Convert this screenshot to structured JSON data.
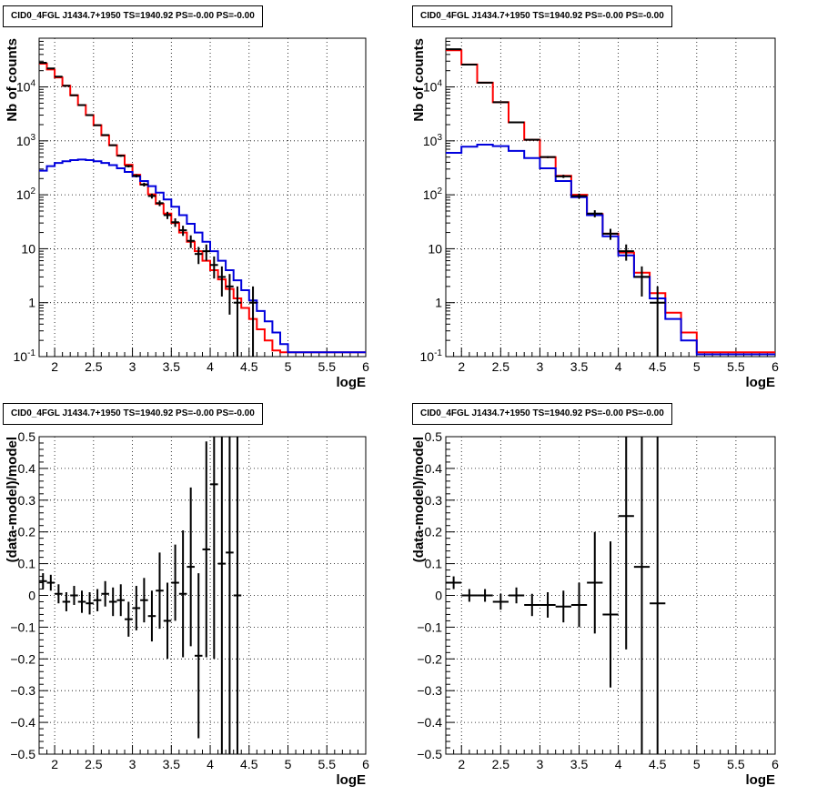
{
  "colors": {
    "data": "#000000",
    "model_total": "#ff0000",
    "model_component": "#0000dd"
  },
  "panels": [
    {
      "title": "CID0_4FGL J1434.7+1950 TS=1940.92 PS=-0.00 PS=-0.00",
      "chart_data": {
        "type": "line",
        "xlabel": "logE",
        "ylabel": "Nb of counts",
        "xlim": [
          1.8,
          6.0
        ],
        "ylim": [
          0.1,
          80000
        ],
        "yscale": "log",
        "grid": true,
        "xticks": [
          "2",
          "2.5",
          "3",
          "3.5",
          "4",
          "4.5",
          "5",
          "5.5",
          "6"
        ],
        "yticks": [
          "10^-1",
          "1",
          "10",
          "10^2",
          "10^3",
          "10^4"
        ],
        "bin_edges": [
          1.8,
          1.9,
          2.0,
          2.1,
          2.2,
          2.3,
          2.4,
          2.5,
          2.6,
          2.7,
          2.8,
          2.9,
          3.0,
          3.1,
          3.2,
          3.3,
          3.4,
          3.5,
          3.6,
          3.7,
          3.8,
          3.9,
          4.0,
          4.1,
          4.2,
          4.3,
          4.4,
          4.5,
          4.6,
          4.7,
          4.8,
          4.9,
          5.0,
          5.1,
          5.2,
          5.3,
          5.4,
          5.5,
          5.6,
          5.7,
          5.8,
          5.9,
          6.0
        ],
        "series": [
          {
            "role": "model_total",
            "values": [
              27000,
              21000,
              15000,
              10500,
              7000,
              4600,
              3000,
              1950,
              1270,
              830,
              540,
              360,
              235,
              155,
              102,
              68,
              45,
              30,
              20,
              13.5,
              9,
              6,
              4,
              2.7,
              1.8,
              1.2,
              0.8,
              0.5,
              0.32,
              0.2,
              0.13,
              0.12,
              0.12,
              0.12,
              0.12,
              0.12,
              0.12,
              0.12,
              0.12,
              0.12,
              0.12,
              0.12
            ]
          },
          {
            "role": "model_component",
            "values": [
              280,
              340,
              390,
              420,
              440,
              450,
              440,
              420,
              390,
              355,
              310,
              265,
              220,
              180,
              145,
              110,
              82,
              60,
              42,
              29,
              20,
              13.5,
              9,
              6,
              4,
              2.6,
              1.7,
              1.1,
              0.7,
              0.45,
              0.28,
              0.17,
              0.12,
              0.12,
              0.12,
              0.12,
              0.12,
              0.12,
              0.12,
              0.12,
              0.12,
              0.12
            ]
          },
          {
            "role": "data",
            "x": [
              1.85,
              1.95,
              2.05,
              2.15,
              2.25,
              2.35,
              2.45,
              2.55,
              2.65,
              2.75,
              2.85,
              2.95,
              3.05,
              3.15,
              3.25,
              3.35,
              3.45,
              3.55,
              3.65,
              3.75,
              3.85,
              3.95,
              4.05,
              4.15,
              4.25,
              4.35,
              4.55
            ],
            "y": [
              28000,
              22000,
              15500,
              10500,
              7000,
              4600,
              3000,
              1950,
              1280,
              830,
              530,
              340,
              225,
              155,
              95,
              70,
              42,
              31,
              22,
              14,
              8,
              9,
              5,
              3,
              2,
              1,
              1
            ],
            "yerr": [
              170,
              150,
              125,
              105,
              85,
              70,
              55,
              45,
              36,
              29,
              23,
              18,
              15,
              12.5,
              10,
              8.4,
              6.5,
              5.6,
              4.7,
              3.7,
              2.8,
              3,
              2.2,
              1.7,
              1.4,
              1,
              1
            ]
          }
        ]
      }
    },
    {
      "title": "CID0_4FGL J1434.7+1950 TS=1940.92 PS=-0.00 PS=-0.00",
      "chart_data": {
        "type": "line",
        "xlabel": "logE",
        "ylabel": "Nb of counts",
        "xlim": [
          1.8,
          6.0
        ],
        "ylim": [
          0.1,
          80000
        ],
        "yscale": "log",
        "grid": true,
        "xticks": [
          "2",
          "2.5",
          "3",
          "3.5",
          "4",
          "4.5",
          "5",
          "5.5",
          "6"
        ],
        "yticks": [
          "10^-1",
          "1",
          "10",
          "10^2",
          "10^3",
          "10^4"
        ],
        "bin_edges": [
          1.8,
          2.0,
          2.2,
          2.4,
          2.6,
          2.8,
          3.0,
          3.2,
          3.4,
          3.6,
          3.8,
          4.0,
          4.2,
          4.4,
          4.6,
          4.8,
          5.0,
          5.2,
          5.4,
          5.6,
          5.8,
          6.0
        ],
        "series": [
          {
            "role": "model_total",
            "values": [
              48000,
              26000,
              12000,
              5200,
              2200,
              1050,
              500,
              225,
              100,
              44,
              19,
              8.5,
              3.6,
              1.5,
              0.65,
              0.28,
              0.12,
              0.12,
              0.12,
              0.12,
              0.12
            ]
          },
          {
            "role": "model_component",
            "values": [
              600,
              780,
              850,
              800,
              650,
              480,
              310,
              180,
              90,
              42,
              17,
              7.5,
              3,
              1.2,
              0.5,
              0.2,
              0.11,
              0.11,
              0.11,
              0.11,
              0.11
            ]
          },
          {
            "role": "data",
            "x": [
              1.9,
              2.1,
              2.3,
              2.5,
              2.7,
              2.9,
              3.1,
              3.3,
              3.5,
              3.7,
              3.9,
              4.1,
              4.3,
              4.5
            ],
            "y": [
              50000,
              26000,
              12000,
              5200,
              2200,
              1050,
              500,
              220,
              95,
              45,
              19,
              9,
              3,
              1
            ],
            "yerr": [
              220,
              160,
              110,
              72,
              47,
              32,
              22,
              15,
              10,
              6.7,
              4.4,
              3,
              1.7,
              1
            ]
          }
        ]
      }
    },
    {
      "title": "CID0_4FGL J1434.7+1950 TS=1940.92 PS=-0.00 PS=-0.00",
      "chart_data": {
        "type": "scatter",
        "xlabel": "logE",
        "ylabel": "(data-model)/model",
        "xlim": [
          1.8,
          6.0
        ],
        "ylim": [
          -0.5,
          0.5
        ],
        "grid": true,
        "xticks": [
          "2",
          "2.5",
          "3",
          "3.5",
          "4",
          "4.5",
          "5",
          "5.5",
          "6"
        ],
        "yticks": [
          "-0.5",
          "-0.4",
          "-0.3",
          "-0.2",
          "-0.1",
          "0",
          "0.1",
          "0.2",
          "0.3",
          "0.4",
          "0.5"
        ],
        "xerr": 0.05,
        "x": [
          1.85,
          1.95,
          2.05,
          2.15,
          2.25,
          2.35,
          2.45,
          2.55,
          2.65,
          2.75,
          2.85,
          2.95,
          3.05,
          3.15,
          3.25,
          3.35,
          3.45,
          3.55,
          3.65,
          3.75,
          3.85,
          3.95,
          4.05,
          4.15,
          4.25,
          4.35
        ],
        "y": [
          0.045,
          0.04,
          0.005,
          -0.02,
          0.0,
          -0.02,
          -0.025,
          -0.015,
          0.005,
          -0.02,
          -0.015,
          -0.075,
          -0.04,
          -0.015,
          -0.065,
          0.015,
          -0.08,
          0.04,
          0.005,
          0.09,
          -0.19,
          0.145,
          0.35,
          0.1,
          0.135,
          0.0
        ],
        "yerr": [
          0.025,
          0.025,
          0.03,
          0.03,
          0.03,
          0.035,
          0.035,
          0.035,
          0.04,
          0.045,
          0.05,
          0.055,
          0.07,
          0.07,
          0.08,
          0.12,
          0.12,
          0.12,
          0.2,
          0.25,
          0.26,
          0.34,
          0.55,
          0.6,
          0.7,
          1.0
        ]
      }
    },
    {
      "title": "CID0_4FGL J1434.7+1950 TS=1940.92 PS=-0.00 PS=-0.00",
      "chart_data": {
        "type": "scatter",
        "xlabel": "logE",
        "ylabel": "(data-model)/model",
        "xlim": [
          1.8,
          6.0
        ],
        "ylim": [
          -0.5,
          0.5
        ],
        "grid": true,
        "xticks": [
          "2",
          "2.5",
          "3",
          "3.5",
          "4",
          "4.5",
          "5",
          "5.5",
          "6"
        ],
        "yticks": [
          "-0.5",
          "-0.4",
          "-0.3",
          "-0.2",
          "-0.1",
          "0",
          "0.1",
          "0.2",
          "0.3",
          "0.4",
          "0.5"
        ],
        "xerr": 0.1,
        "x": [
          1.9,
          2.1,
          2.3,
          2.5,
          2.7,
          2.9,
          3.1,
          3.3,
          3.5,
          3.7,
          3.9,
          4.1,
          4.3,
          4.5
        ],
        "y": [
          0.04,
          0.0,
          0.0,
          -0.02,
          0.0,
          -0.03,
          -0.03,
          -0.035,
          -0.03,
          0.04,
          -0.06,
          0.25,
          0.09,
          -0.025
        ],
        "yerr": [
          0.02,
          0.02,
          0.02,
          0.025,
          0.025,
          0.035,
          0.04,
          0.05,
          0.07,
          0.16,
          0.23,
          0.42,
          0.8,
          1.0
        ]
      }
    }
  ]
}
